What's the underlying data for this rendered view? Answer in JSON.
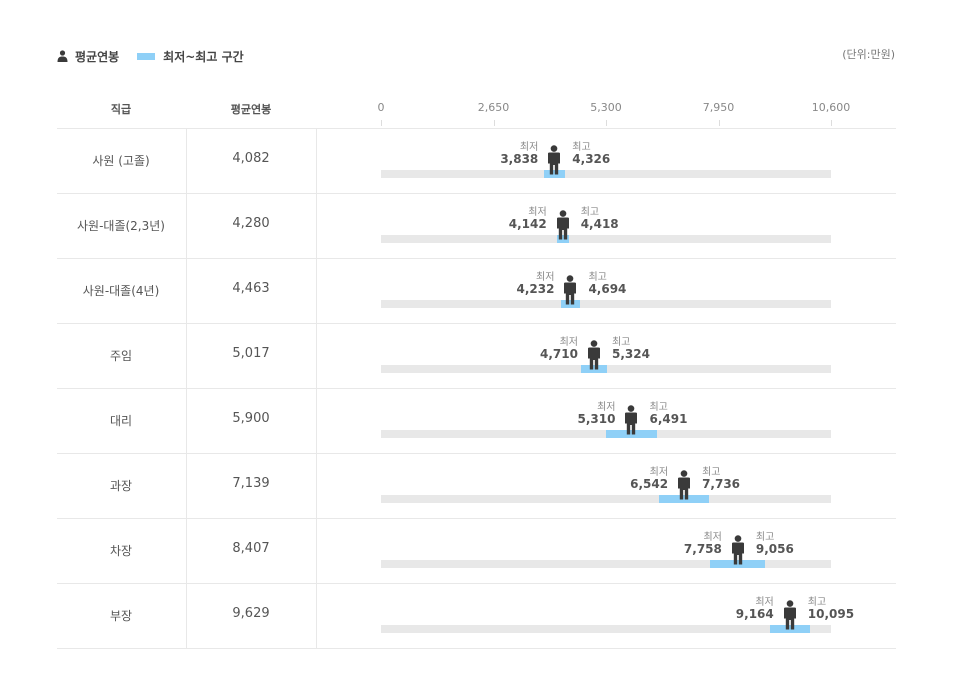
{
  "legend": {
    "avg_label": "평균연봉",
    "range_label": "최저~최고 구간",
    "person_icon": "person-icon"
  },
  "unit": "(단위:만원)",
  "header": {
    "rank": "직급",
    "avg": "평균연봉"
  },
  "captions": {
    "min": "최저",
    "max": "최고"
  },
  "colors": {
    "range": "#8fd0f7",
    "track": "#e8e8e8",
    "marker": "#3a3a3a"
  },
  "chart_data": {
    "type": "range",
    "xlim": [
      0,
      10600
    ],
    "xticks": [
      "0",
      "2,650",
      "5,300",
      "7,950",
      "10,600"
    ],
    "xtick_values": [
      0,
      2650,
      5300,
      7950,
      10600
    ],
    "rows": [
      {
        "name": "사원 (고졸)",
        "avg": 4082,
        "avg_label": "4,082",
        "min": 3838,
        "min_label": "3,838",
        "max": 4326,
        "max_label": "4,326"
      },
      {
        "name": "사원-대졸(2,3년)",
        "avg": 4280,
        "avg_label": "4,280",
        "min": 4142,
        "min_label": "4,142",
        "max": 4418,
        "max_label": "4,418"
      },
      {
        "name": "사원-대졸(4년)",
        "avg": 4463,
        "avg_label": "4,463",
        "min": 4232,
        "min_label": "4,232",
        "max": 4694,
        "max_label": "4,694"
      },
      {
        "name": "주임",
        "avg": 5017,
        "avg_label": "5,017",
        "min": 4710,
        "min_label": "4,710",
        "max": 5324,
        "max_label": "5,324"
      },
      {
        "name": "대리",
        "avg": 5900,
        "avg_label": "5,900",
        "min": 5310,
        "min_label": "5,310",
        "max": 6491,
        "max_label": "6,491"
      },
      {
        "name": "과장",
        "avg": 7139,
        "avg_label": "7,139",
        "min": 6542,
        "min_label": "6,542",
        "max": 7736,
        "max_label": "7,736"
      },
      {
        "name": "차장",
        "avg": 8407,
        "avg_label": "8,407",
        "min": 7758,
        "min_label": "7,758",
        "max": 9056,
        "max_label": "9,056"
      },
      {
        "name": "부장",
        "avg": 9629,
        "avg_label": "9,629",
        "min": 9164,
        "min_label": "9,164",
        "max": 10095,
        "max_label": "10,095"
      }
    ]
  }
}
